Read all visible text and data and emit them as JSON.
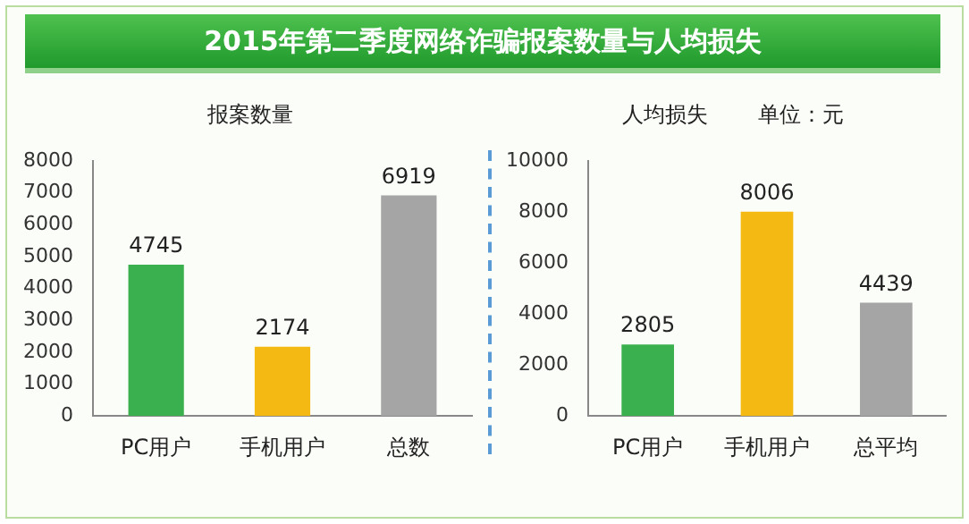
{
  "chart_data": [
    {
      "type": "bar",
      "title": "2015年第二季度网络诈骗报案数量与人均损失",
      "subtitle": "报案数量",
      "categories": [
        "PC用户",
        "手机用户",
        "总数"
      ],
      "values": [
        4745,
        2174,
        6919
      ],
      "colors": [
        "#3bb04e",
        "#f5b914",
        "#a5a5a5"
      ],
      "ylim": [
        0,
        8000
      ],
      "yticks": [
        0,
        1000,
        2000,
        3000,
        4000,
        5000,
        6000,
        7000,
        8000
      ],
      "data_labels": true,
      "grid": false,
      "legend": false
    },
    {
      "type": "bar",
      "title": "人均损失",
      "annotations": [
        "单位：元"
      ],
      "categories": [
        "PC用户",
        "手机用户",
        "总平均"
      ],
      "values": [
        2805,
        8006,
        4439
      ],
      "colors": [
        "#3bb04e",
        "#f5b914",
        "#a5a5a5"
      ],
      "ylim": [
        0,
        10000
      ],
      "yticks": [
        0,
        2000,
        4000,
        6000,
        8000,
        10000
      ],
      "data_labels": true,
      "grid": false,
      "legend": false
    }
  ]
}
